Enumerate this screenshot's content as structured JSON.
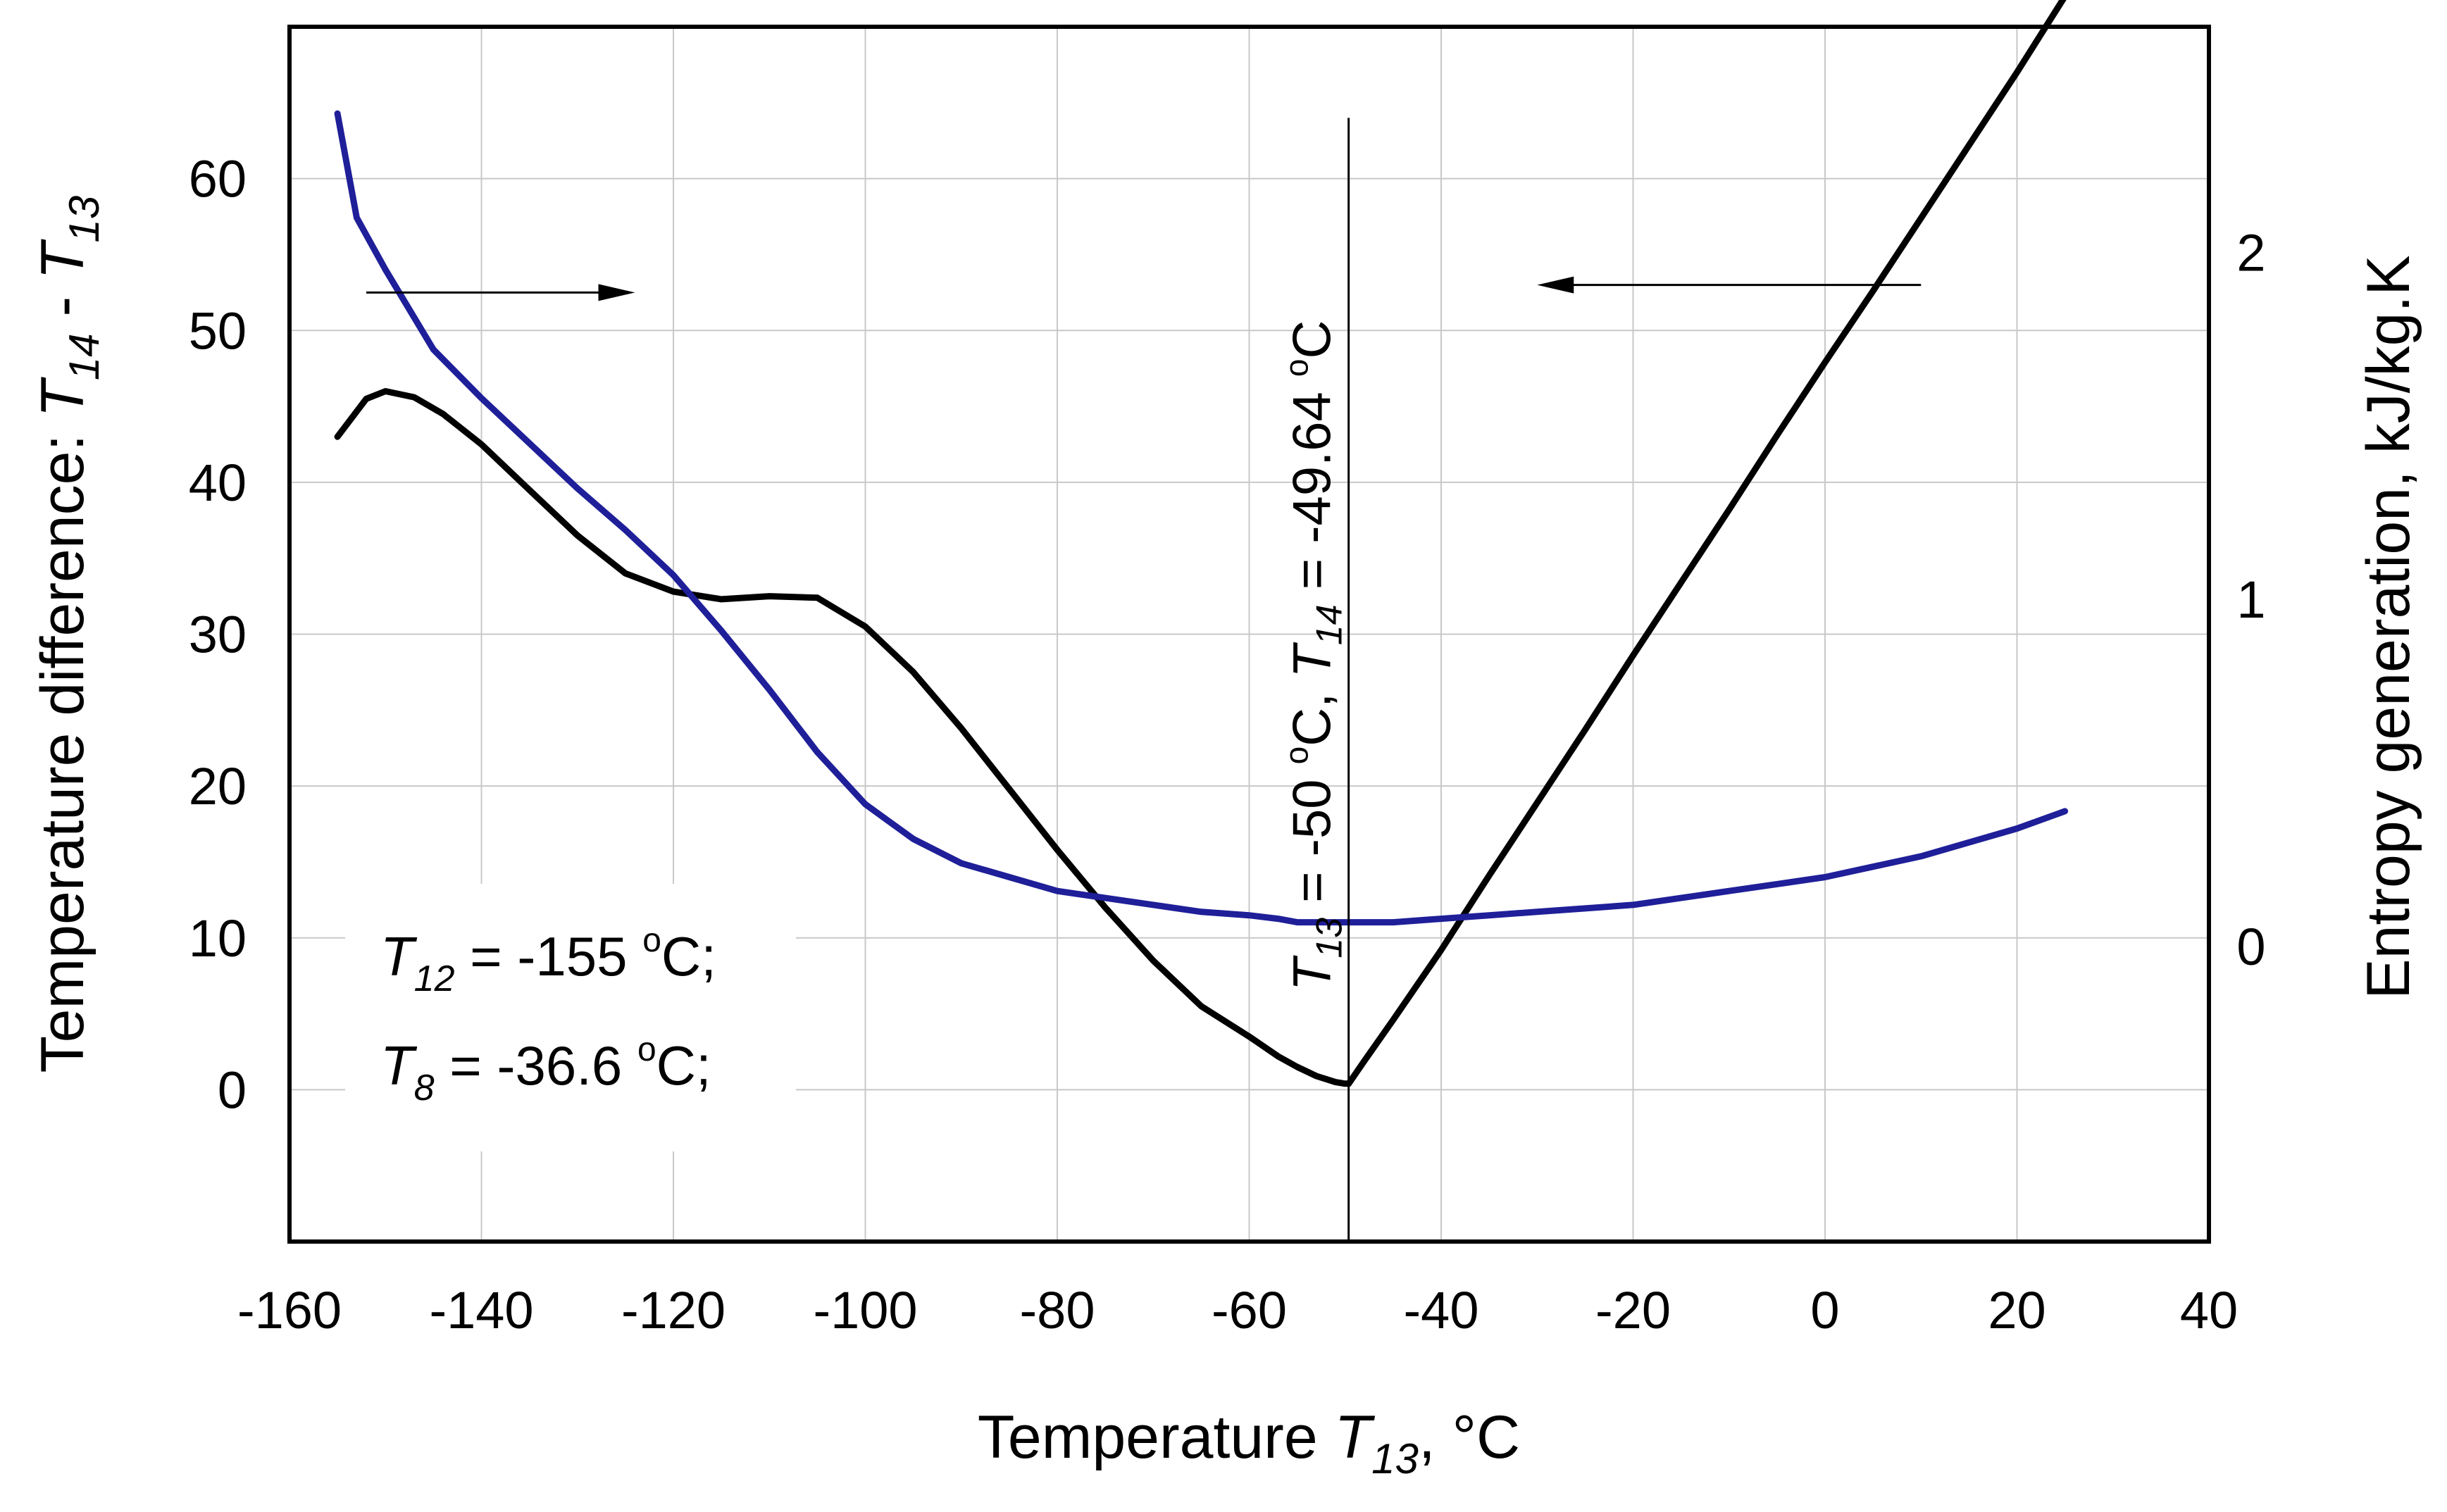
{
  "chart_data": {
    "type": "line",
    "x_axis": {
      "label_prefix": "Temperature ",
      "label_var": "T",
      "label_sub": "13",
      "label_suffix": ", °C",
      "range": [
        -160,
        40
      ],
      "ticks": [
        -160,
        -140,
        -120,
        -100,
        -80,
        -60,
        -40,
        -20,
        0,
        20,
        40
      ],
      "tick_labels": [
        "-160",
        "-140",
        "-120",
        "-100",
        "-80",
        "-60",
        "-40",
        "-20",
        "0",
        "20",
        "40"
      ]
    },
    "y_axis_left": {
      "label_prefix": "Temperature difference: ",
      "label_var1": "T",
      "label_sub1": "14",
      "label_mid": " - ",
      "label_var2": "T",
      "label_sub2": "13",
      "range": [
        -10,
        70
      ],
      "ticks": [
        0,
        10,
        20,
        30,
        40,
        50,
        60
      ],
      "tick_labels": [
        "0",
        "10",
        "20",
        "30",
        "40",
        "50",
        "60"
      ]
    },
    "y_axis_right": {
      "label": "Entropy generation, kJ/kg.K",
      "range": [
        -0.85,
        2.65
      ],
      "ticks": [
        0,
        1,
        2
      ],
      "tick_labels": [
        "0",
        "1",
        "2"
      ]
    },
    "grid": true,
    "series": [
      {
        "name": "Temperature difference T14 - T13",
        "axis": "left",
        "color": "#000000",
        "x": [
          -155,
          -152,
          -150,
          -147,
          -144,
          -140,
          -135,
          -130,
          -125,
          -120,
          -115,
          -110,
          -105,
          -100,
          -95,
          -90,
          -85,
          -80,
          -75,
          -70,
          -65,
          -60,
          -57,
          -55,
          -53,
          -51,
          -50,
          -49.64,
          -48,
          -45,
          -40,
          -35,
          -30,
          -25,
          -20,
          -15,
          -10,
          -5,
          0,
          5,
          10,
          15,
          20,
          25
        ],
        "y": [
          43,
          45.5,
          46,
          45.6,
          44.5,
          42.5,
          39.5,
          36.5,
          34,
          32.8,
          32.3,
          32.5,
          32.4,
          30.5,
          27.5,
          23.8,
          19.8,
          15.8,
          12,
          8.5,
          5.5,
          3.5,
          2.2,
          1.5,
          0.9,
          0.5,
          0.4,
          0.4,
          1.9,
          4.6,
          9.2,
          14.1,
          18.9,
          23.7,
          28.6,
          33.4,
          38.2,
          43.1,
          47.9,
          52.6,
          57.4,
          62.2,
          67.0,
          72
        ]
      },
      {
        "name": "Entropy generation",
        "axis": "right",
        "color": "#1f1f99",
        "x": [
          -155,
          -153,
          -150,
          -145,
          -140,
          -135,
          -130,
          -125,
          -120,
          -115,
          -110,
          -105,
          -100,
          -95,
          -90,
          -85,
          -80,
          -75,
          -70,
          -65,
          -60,
          -57,
          -55,
          -50,
          -45,
          -40,
          -35,
          -30,
          -25,
          -20,
          -15,
          -10,
          -5,
          0,
          5,
          10,
          15,
          20,
          25
        ],
        "y": [
          2.4,
          2.1,
          1.95,
          1.72,
          1.58,
          1.45,
          1.32,
          1.2,
          1.07,
          0.91,
          0.74,
          0.56,
          0.41,
          0.31,
          0.24,
          0.2,
          0.16,
          0.14,
          0.12,
          0.1,
          0.09,
          0.08,
          0.07,
          0.07,
          0.07,
          0.08,
          0.09,
          0.1,
          0.11,
          0.12,
          0.14,
          0.16,
          0.18,
          0.2,
          0.23,
          0.26,
          0.3,
          0.34,
          0.39
        ]
      }
    ],
    "vertical_line": {
      "x": -49.64,
      "y_top": 64
    },
    "annotation_vertical": {
      "parts": [
        {
          "t": "T",
          "s": "italic"
        },
        {
          "t": "13",
          "s": "sub"
        },
        {
          "t": " = -50 ",
          "s": "normal"
        },
        {
          "t": "o",
          "s": "sup"
        },
        {
          "t": "C, ",
          "s": "normal"
        },
        {
          "t": "T",
          "s": "italic"
        },
        {
          "t": "14",
          "s": "sub"
        },
        {
          "t": " = -49.64 ",
          "s": "normal"
        },
        {
          "t": "o",
          "s": "sup"
        },
        {
          "t": "C",
          "s": "normal"
        }
      ]
    },
    "legend_box": {
      "line1_var": "T",
      "line1_sub": "12",
      "line1_rest": " = -155 ",
      "line1_deg": "o",
      "line1_end": "C;",
      "line2_var": "T",
      "line2_sub": "8",
      "line2_rest": "  = -36.6 ",
      "line2_deg": "o",
      "line2_end": "C;"
    },
    "arrows": [
      {
        "points_to": "right axis",
        "x_from": -152,
        "x_to": -124,
        "y": 52.5
      },
      {
        "points_to": "left axis",
        "x_from": 10,
        "x_to": -30,
        "y": 53
      }
    ]
  }
}
